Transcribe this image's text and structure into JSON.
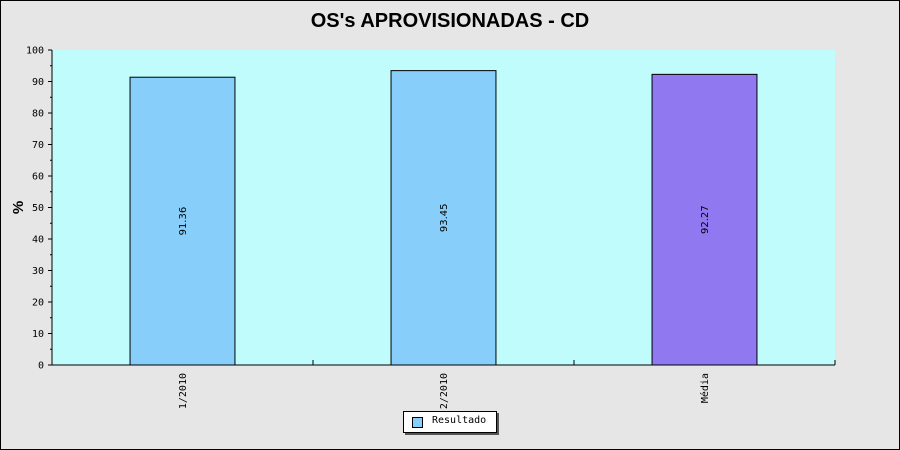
{
  "chart_data": {
    "type": "bar",
    "title": "OS's APROVISIONADAS - CD",
    "ylabel": "%",
    "xlabel": "",
    "ylim": [
      0,
      100
    ],
    "y_ticks": [
      0,
      10,
      20,
      30,
      40,
      50,
      60,
      70,
      80,
      90,
      100
    ],
    "categories": [
      "1/2010",
      "2/2010",
      "Média"
    ],
    "series": [
      {
        "name": "Resultado",
        "values": [
          91.36,
          93.45,
          92.27
        ]
      }
    ],
    "value_labels": [
      "91.36",
      "93.45",
      "92.27"
    ],
    "bar_colors": [
      "#87cefa",
      "#87cefa",
      "#9078f0"
    ],
    "plot_background": "#c0fcfc",
    "grid": false,
    "legend_position": "bottom-center"
  }
}
